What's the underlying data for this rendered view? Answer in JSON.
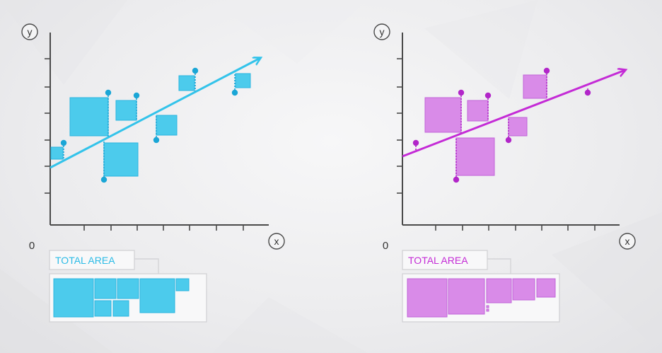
{
  "panels": [
    {
      "id": "left",
      "color": "#33c3ea",
      "fill": "#4ccbec",
      "y_label": "y",
      "x_label": "x",
      "origin_label": "0",
      "total_area_label": "TOTAL AREA"
    },
    {
      "id": "right",
      "color": "#c42bd6",
      "fill": "#d98be8",
      "y_label": "y",
      "x_label": "x",
      "origin_label": "0",
      "total_area_label": "TOTAL AREA"
    }
  ]
}
